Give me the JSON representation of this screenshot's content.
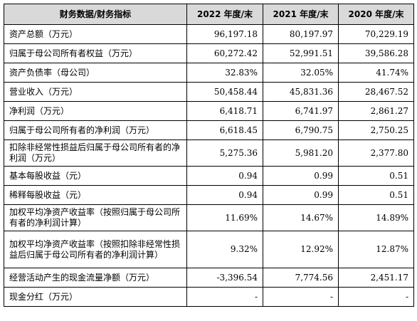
{
  "table": {
    "headers": [
      "财务数据/财务指标",
      "2022 年度/末",
      "2021 年度/末",
      "2020 年度/末"
    ],
    "rows": [
      {
        "label": "资产总额（万元）",
        "values": [
          "96,197.18",
          "80,197.97",
          "70,229.19"
        ]
      },
      {
        "label": "归属于母公司所有者权益（万元）",
        "values": [
          "60,272.42",
          "52,991.51",
          "39,586.28"
        ]
      },
      {
        "label": "资产负债率（母公司）",
        "values": [
          "32.83%",
          "32.05%",
          "41.74%"
        ]
      },
      {
        "label": "营业收入（万元）",
        "values": [
          "50,458.44",
          "45,831.36",
          "28,467.52"
        ]
      },
      {
        "label": "净利润（万元）",
        "values": [
          "6,418.71",
          "6,741.97",
          "2,861.27"
        ]
      },
      {
        "label": "归属于母公司所有者的净利润（万元）",
        "values": [
          "6,618.45",
          "6,790.75",
          "2,750.25"
        ]
      },
      {
        "label": "扣除非经常性损益后归属于母公司所有者的净利润（万元）",
        "values": [
          "5,275.36",
          "5,981.20",
          "2,377.80"
        ]
      },
      {
        "label": "基本每股收益（元）",
        "values": [
          "0.94",
          "0.99",
          "0.51"
        ]
      },
      {
        "label": "稀释每股收益（元）",
        "values": [
          "0.94",
          "0.99",
          "0.51"
        ]
      },
      {
        "label": "加权平均净资产收益率（按照归属于母公司所有者的净利润计算）",
        "values": [
          "11.69%",
          "14.67%",
          "14.89%"
        ]
      },
      {
        "label": "加权平均净资产收益率（按照扣除非经常性损益后归属于母公司所有者的净利润计算）",
        "values": [
          "9.32%",
          "12.92%",
          "12.87%"
        ]
      },
      {
        "label": "经营活动产生的现金流量净额（万元）",
        "values": [
          "-3,396.54",
          "7,774.56",
          "2,451.17"
        ]
      },
      {
        "label": "现金分红（万元）",
        "values": [
          "-",
          "-",
          "-"
        ]
      }
    ]
  }
}
